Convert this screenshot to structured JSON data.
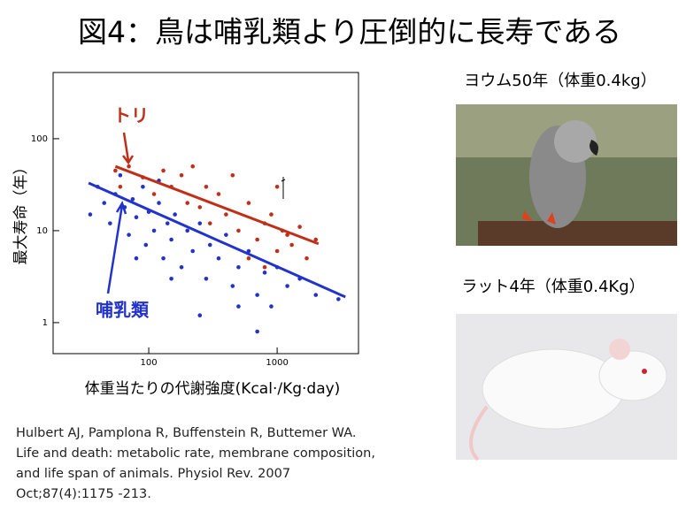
{
  "title": "図4：鳥は哺乳類より圧倒的に長寿である",
  "chart_data": {
    "type": "scatter",
    "xlabel": "体重当たりの代謝強度(Kcal·/Kg·day)",
    "ylabel": "最大寿命（年）",
    "xlim": [
      18,
      4300
    ],
    "ylim": [
      0.46,
      525
    ],
    "xlog": true,
    "ylog": true,
    "xticks": [
      100,
      1000
    ],
    "yticks": [
      1,
      10,
      100
    ],
    "series": [
      {
        "name": "哺乳類",
        "color": "#2233cc",
        "x": [
          35,
          40,
          45,
          50,
          55,
          60,
          65,
          70,
          75,
          80,
          90,
          95,
          100,
          110,
          120,
          130,
          140,
          150,
          160,
          180,
          200,
          220,
          250,
          280,
          300,
          350,
          400,
          450,
          500,
          600,
          700,
          800,
          900,
          1000,
          1200,
          1500,
          2000,
          3000,
          700,
          250,
          150,
          500,
          80,
          120
        ],
        "values": [
          15,
          30,
          20,
          12,
          25,
          40,
          18,
          9,
          22,
          14,
          30,
          7,
          16,
          10,
          20,
          5,
          12,
          8,
          15,
          4,
          10,
          6,
          12,
          3,
          7,
          5,
          9,
          2.5,
          4,
          6,
          2,
          3.5,
          1.5,
          4,
          2.5,
          3,
          2,
          1.8,
          0.8,
          1.2,
          3,
          1.5,
          5,
          35
        ]
      },
      {
        "name": "トリ",
        "color": "#c03018",
        "x": [
          55,
          60,
          70,
          90,
          110,
          130,
          150,
          180,
          200,
          220,
          250,
          280,
          300,
          350,
          400,
          450,
          500,
          600,
          700,
          800,
          900,
          1000,
          1100,
          1200,
          1300,
          1500,
          1700,
          2000,
          1000,
          800,
          600
        ],
        "values": [
          45,
          30,
          50,
          38,
          25,
          45,
          30,
          40,
          20,
          50,
          18,
          30,
          12,
          25,
          15,
          40,
          10,
          20,
          8,
          12,
          15,
          6,
          10,
          9,
          7,
          11,
          5,
          8,
          30,
          4,
          5
        ]
      }
    ],
    "fit_lines": [
      {
        "color": "#c03018",
        "x": [
          55,
          2100
        ],
        "values": [
          50,
          7.2
        ]
      },
      {
        "color": "#2233cc",
        "x": [
          34,
          3400
        ],
        "values": [
          33,
          1.9
        ]
      }
    ]
  },
  "photos": [
    {
      "caption": "ヨウム50年（体重0.4kg）"
    },
    {
      "caption": "ラット4年（体重0.4Kg）"
    }
  ],
  "citation": [
    "Hulbert AJ, Pamplona R, Buffenstein R, Buttemer WA.",
    "Life and death: metabolic rate, membrane composition,",
    "and life span of animals. Physiol Rev. 2007",
    "Oct;87(4):1175 -213."
  ]
}
